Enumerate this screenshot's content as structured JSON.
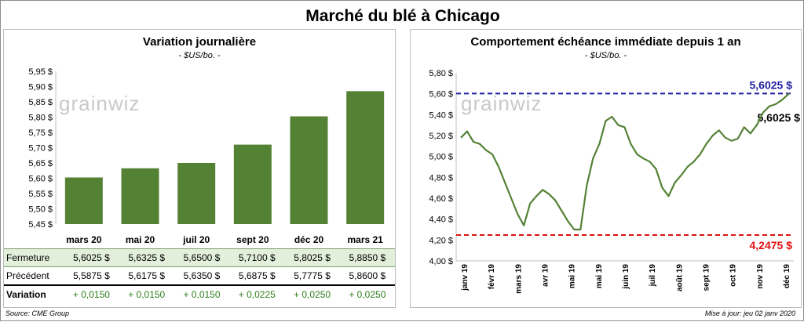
{
  "title": "Marché du blé à Chicago",
  "left": {
    "subtitle": "Variation journalière",
    "unit": "- $US/bo. -",
    "watermark": "grainwiz",
    "table": {
      "rows": [
        {
          "label": "Fermeture",
          "values": [
            "5,6025 $",
            "5,6325 $",
            "5,6500 $",
            "5,7100 $",
            "5,8025 $",
            "5,8850 $"
          ]
        },
        {
          "label": "Précédent",
          "values": [
            "5,5875 $",
            "5,6175 $",
            "5,6350 $",
            "5,6875 $",
            "5,7775 $",
            "5,8600 $"
          ]
        },
        {
          "label": "Variation",
          "values": [
            "+ 0,0150",
            "+ 0,0150",
            "+ 0,0150",
            "+ 0,0225",
            "+ 0,0250",
            "+ 0,0250"
          ]
        }
      ]
    }
  },
  "right": {
    "subtitle": "Comportement  échéance immédiate depuis 1 an",
    "unit": "- $US/bo. -",
    "watermark": "grainwiz",
    "high_label": "5,6025 $",
    "low_label": "4,2475 $",
    "last_label": "5,6025 $"
  },
  "footer": {
    "source": "Source: CME Group",
    "updated": "Mise à jour: jeu 02 janv 2020"
  },
  "colors": {
    "bar": "#548235",
    "line": "#548235",
    "high_line": "#1f1fa0",
    "low_line": "#e01010",
    "fermeture_bg": "#e2efda",
    "variation_text": "#2e7d1a"
  },
  "chart_data": [
    {
      "type": "bar",
      "title": "Variation journalière",
      "ylabel": "$US/bo.",
      "categories": [
        "mars 20",
        "mai 20",
        "juil 20",
        "sept 20",
        "déc 20",
        "mars 21"
      ],
      "values": [
        5.6025,
        5.6325,
        5.65,
        5.71,
        5.8025,
        5.885
      ],
      "ylim": [
        5.45,
        5.95
      ],
      "yticks": [
        "5,45 $",
        "5,50 $",
        "5,55 $",
        "5,60 $",
        "5,65 $",
        "5,70 $",
        "5,75 $",
        "5,80 $",
        "5,85 $",
        "5,90 $",
        "5,95 $"
      ],
      "grid": false
    },
    {
      "type": "line",
      "title": "Comportement  échéance immédiate depuis 1 an",
      "ylabel": "$US/bo.",
      "ylim": [
        4.0,
        5.8
      ],
      "yticks": [
        "4,00 $",
        "4,20 $",
        "4,40 $",
        "4,60 $",
        "4,80 $",
        "5,00 $",
        "5,20 $",
        "5,40 $",
        "5,60 $",
        "5,80 $"
      ],
      "xticks": [
        "janv 19",
        "févr 19",
        "mars 19",
        "avr 19",
        "mai 19",
        "mai 19",
        "juin 19",
        "juil 19",
        "août 19",
        "sept 19",
        "oct 19",
        "nov 19",
        "déc 19"
      ],
      "reference_lines": [
        {
          "label": "5,6025 $",
          "value": 5.6025
        },
        {
          "label": "4,2475 $",
          "value": 4.2475
        }
      ],
      "series": [
        {
          "x": [
            "2019-01-02",
            "2019-01-09",
            "2019-01-16",
            "2019-01-23",
            "2019-01-30",
            "2019-02-06",
            "2019-02-13",
            "2019-02-20",
            "2019-02-27",
            "2019-03-06",
            "2019-03-13",
            "2019-03-20",
            "2019-03-27",
            "2019-04-03",
            "2019-04-10",
            "2019-04-17",
            "2019-04-24",
            "2019-05-01",
            "2019-05-08",
            "2019-05-15",
            "2019-05-22",
            "2019-05-29",
            "2019-06-05",
            "2019-06-12",
            "2019-06-19",
            "2019-06-26",
            "2019-07-03",
            "2019-07-10",
            "2019-07-17",
            "2019-07-24",
            "2019-07-31",
            "2019-08-07",
            "2019-08-14",
            "2019-08-21",
            "2019-08-28",
            "2019-09-04",
            "2019-09-11",
            "2019-09-18",
            "2019-09-25",
            "2019-10-02",
            "2019-10-09",
            "2019-10-16",
            "2019-10-23",
            "2019-10-30",
            "2019-11-06",
            "2019-11-13",
            "2019-11-20",
            "2019-11-27",
            "2019-12-04",
            "2019-12-11",
            "2019-12-18",
            "2019-12-25",
            "2020-01-02"
          ],
          "values": [
            5.18,
            5.24,
            5.14,
            5.12,
            5.06,
            5.02,
            4.9,
            4.75,
            4.6,
            4.45,
            4.34,
            4.55,
            4.62,
            4.68,
            4.64,
            4.58,
            4.48,
            4.38,
            4.3,
            4.3,
            4.72,
            4.98,
            5.12,
            5.34,
            5.38,
            5.3,
            5.28,
            5.12,
            5.02,
            4.98,
            4.95,
            4.88,
            4.7,
            4.62,
            4.75,
            4.82,
            4.9,
            4.95,
            5.02,
            5.12,
            5.2,
            5.25,
            5.18,
            5.15,
            5.17,
            5.28,
            5.22,
            5.3,
            5.42,
            5.48,
            5.5,
            5.54,
            5.6025
          ]
        }
      ]
    }
  ]
}
